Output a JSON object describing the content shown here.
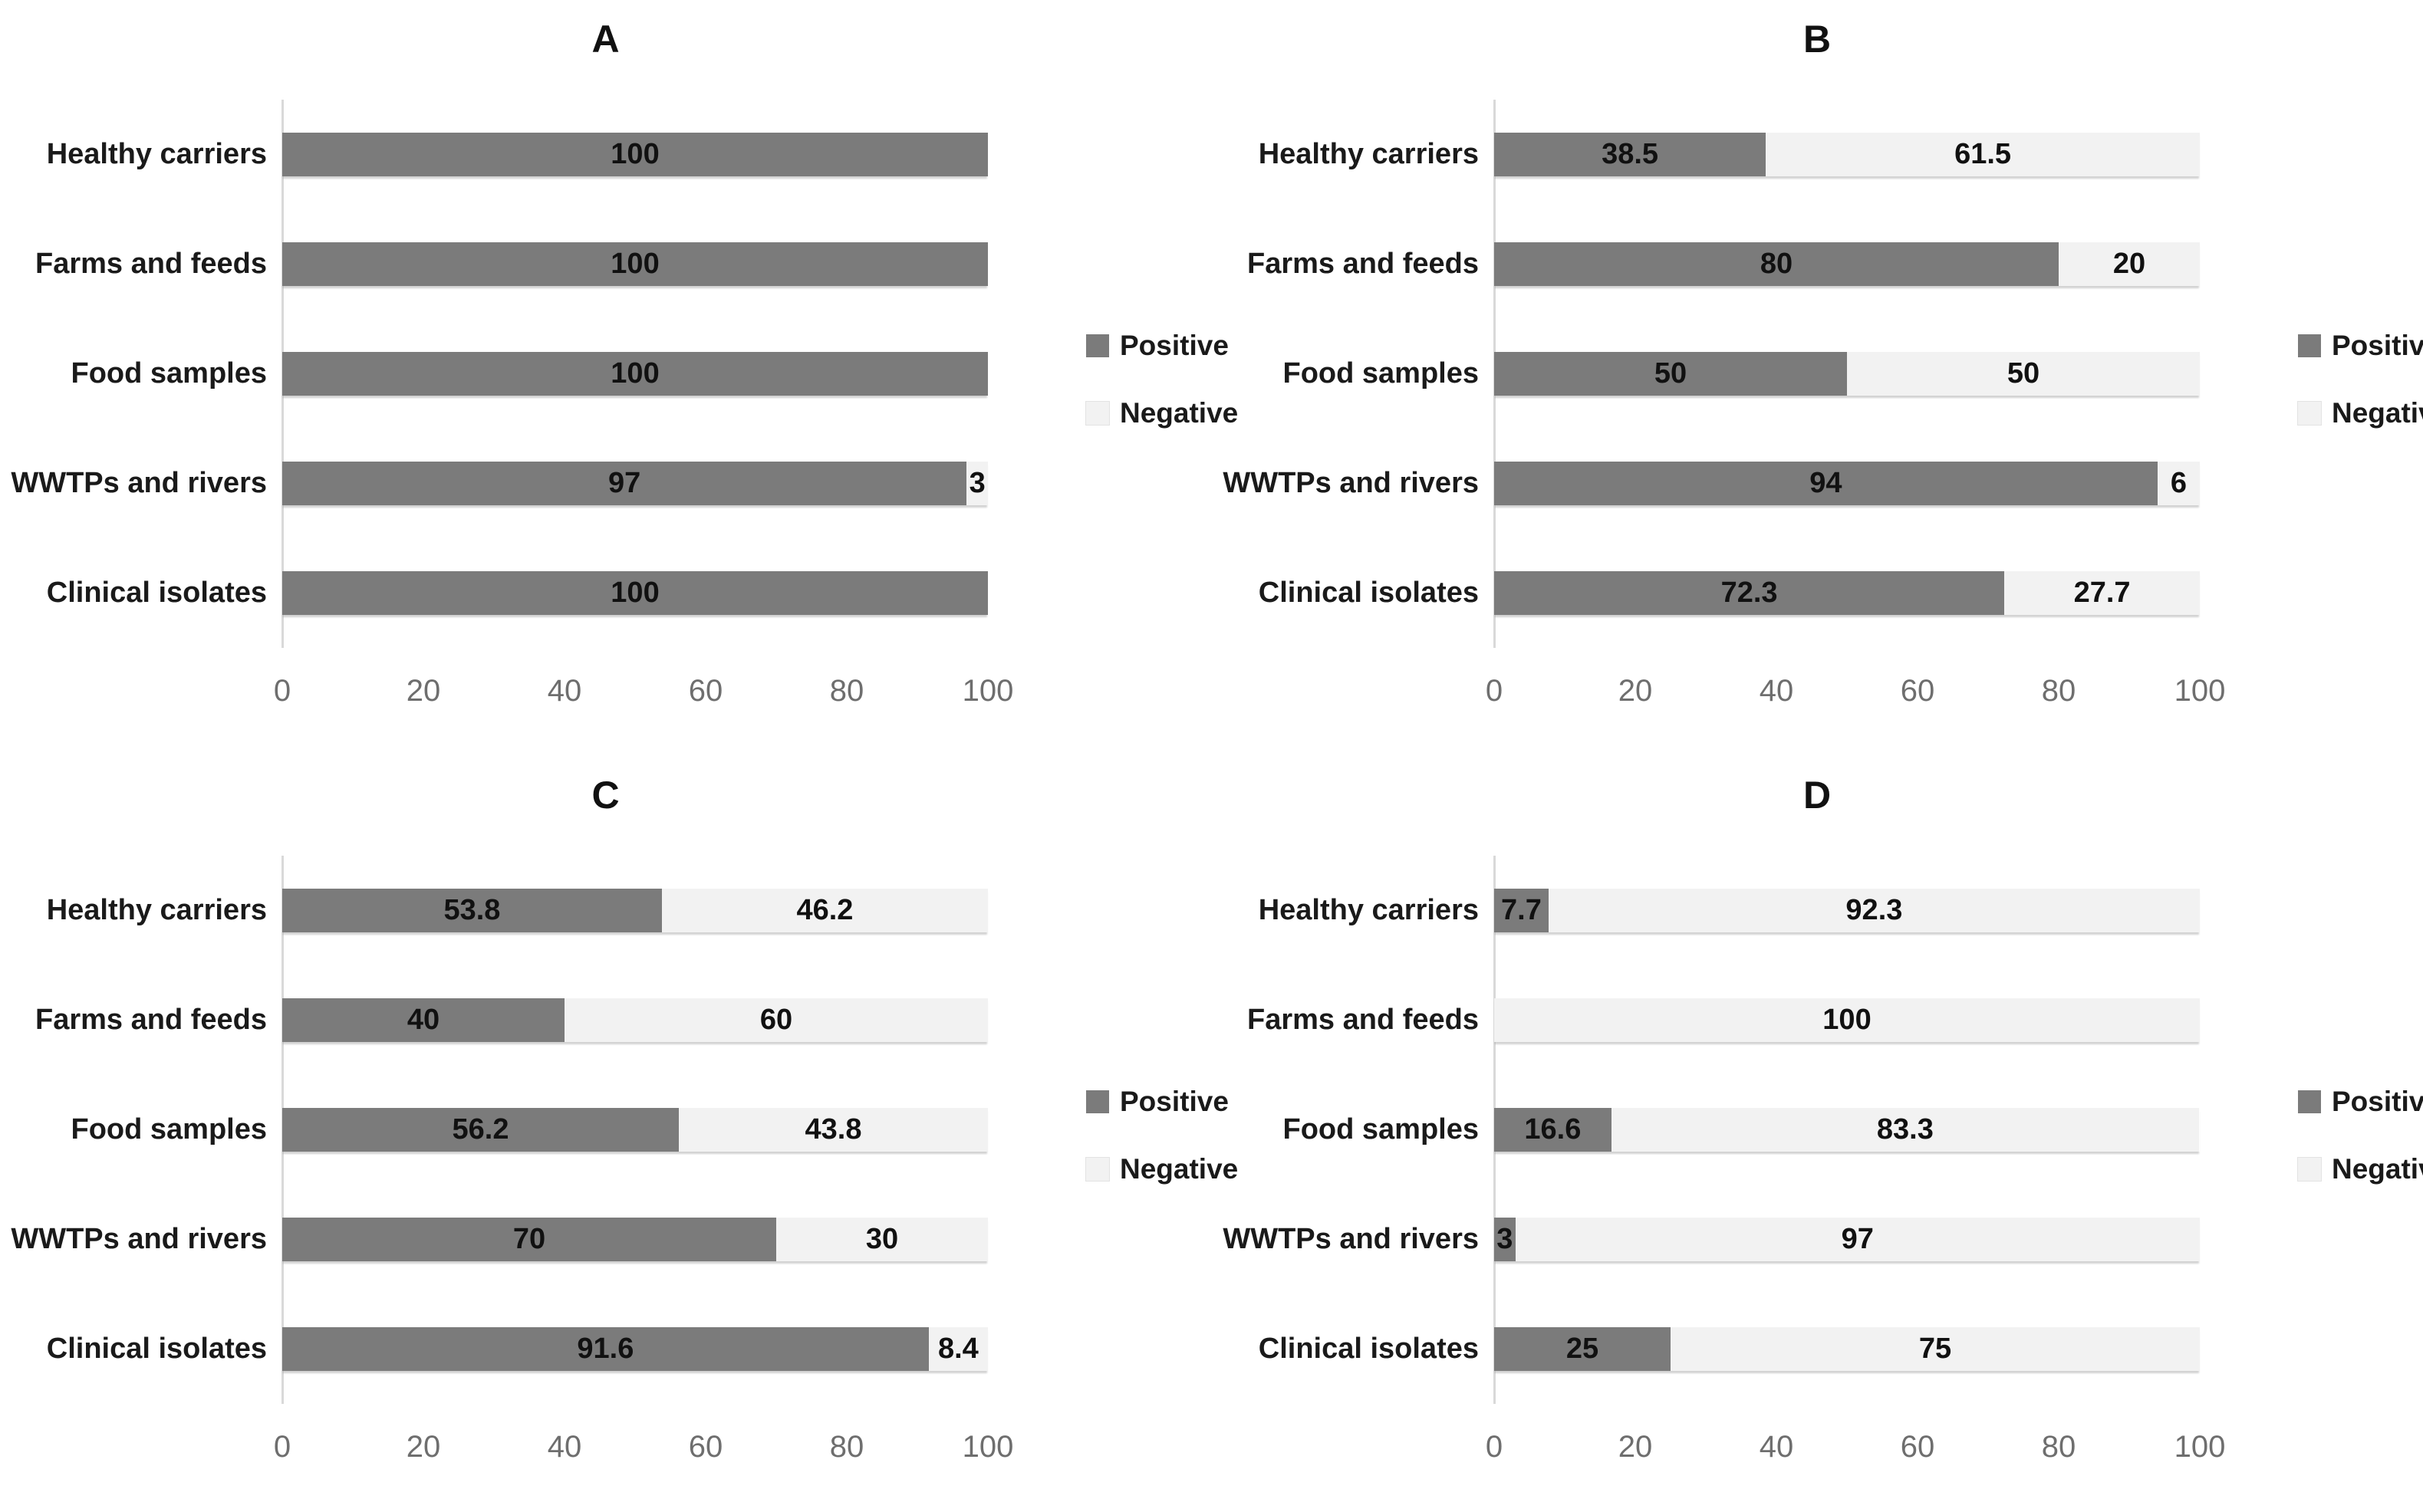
{
  "legend": {
    "positive": "Positive",
    "negative": "Negative"
  },
  "colors": {
    "positive": "#7b7b7b",
    "negative": "#f2f2f2",
    "axis_line": "#d9d9d9",
    "tick_text": "#6e6e6e",
    "label_text": "#111111"
  },
  "axis": {
    "min": 0,
    "max": 100,
    "ticks": [
      "0",
      "20",
      "40",
      "60",
      "80",
      "100"
    ]
  },
  "chart_data": [
    {
      "type": "bar",
      "title": "A",
      "orientation": "horizontal",
      "stacked": true,
      "xlim": [
        0,
        100
      ],
      "categories": [
        "Healthy carriers",
        "Farms and feeds",
        "Food samples",
        "WWTPs and rivers",
        "Clinical isolates"
      ],
      "series": [
        {
          "name": "Positive",
          "values": [
            100,
            100,
            100,
            97,
            100
          ]
        },
        {
          "name": "Negative",
          "values": [
            0,
            0,
            0,
            3,
            0
          ]
        }
      ],
      "value_labels": {
        "positive": [
          "100",
          "100",
          "100",
          "97",
          "100"
        ],
        "negative": [
          "",
          "",
          "",
          "3",
          ""
        ]
      }
    },
    {
      "type": "bar",
      "title": "B",
      "orientation": "horizontal",
      "stacked": true,
      "xlim": [
        0,
        100
      ],
      "categories": [
        "Healthy carriers",
        "Farms and feeds",
        "Food samples",
        "WWTPs and rivers",
        "Clinical isolates"
      ],
      "series": [
        {
          "name": "Positive",
          "values": [
            38.5,
            80,
            50,
            94,
            72.3
          ]
        },
        {
          "name": "Negative",
          "values": [
            61.5,
            20,
            50,
            6,
            27.7
          ]
        }
      ],
      "value_labels": {
        "positive": [
          "38.5",
          "80",
          "50",
          "94",
          "72.3"
        ],
        "negative": [
          "61.5",
          "20",
          "50",
          "6",
          "27.7"
        ]
      }
    },
    {
      "type": "bar",
      "title": "C",
      "orientation": "horizontal",
      "stacked": true,
      "xlim": [
        0,
        100
      ],
      "categories": [
        "Healthy carriers",
        "Farms and feeds",
        "Food samples",
        "WWTPs and rivers",
        "Clinical isolates"
      ],
      "series": [
        {
          "name": "Positive",
          "values": [
            53.8,
            40,
            56.2,
            70,
            91.6
          ]
        },
        {
          "name": "Negative",
          "values": [
            46.2,
            60,
            43.8,
            30,
            8.4
          ]
        }
      ],
      "value_labels": {
        "positive": [
          "53.8",
          "40",
          "56.2",
          "70",
          "91.6"
        ],
        "negative": [
          "46.2",
          "60",
          "43.8",
          "30",
          "8.4"
        ]
      }
    },
    {
      "type": "bar",
      "title": "D",
      "orientation": "horizontal",
      "stacked": true,
      "xlim": [
        0,
        100
      ],
      "categories": [
        "Healthy carriers",
        "Farms and feeds",
        "Food samples",
        "WWTPs and rivers",
        "Clinical isolates"
      ],
      "series": [
        {
          "name": "Positive",
          "values": [
            7.7,
            0,
            16.6,
            3,
            25
          ]
        },
        {
          "name": "Negative",
          "values": [
            92.3,
            100,
            83.3,
            97,
            75
          ]
        }
      ],
      "value_labels": {
        "positive": [
          "7.7",
          "",
          "16.6",
          "3",
          "25"
        ],
        "negative": [
          "92.3",
          "100",
          "83.3",
          "97",
          "75"
        ]
      }
    }
  ]
}
